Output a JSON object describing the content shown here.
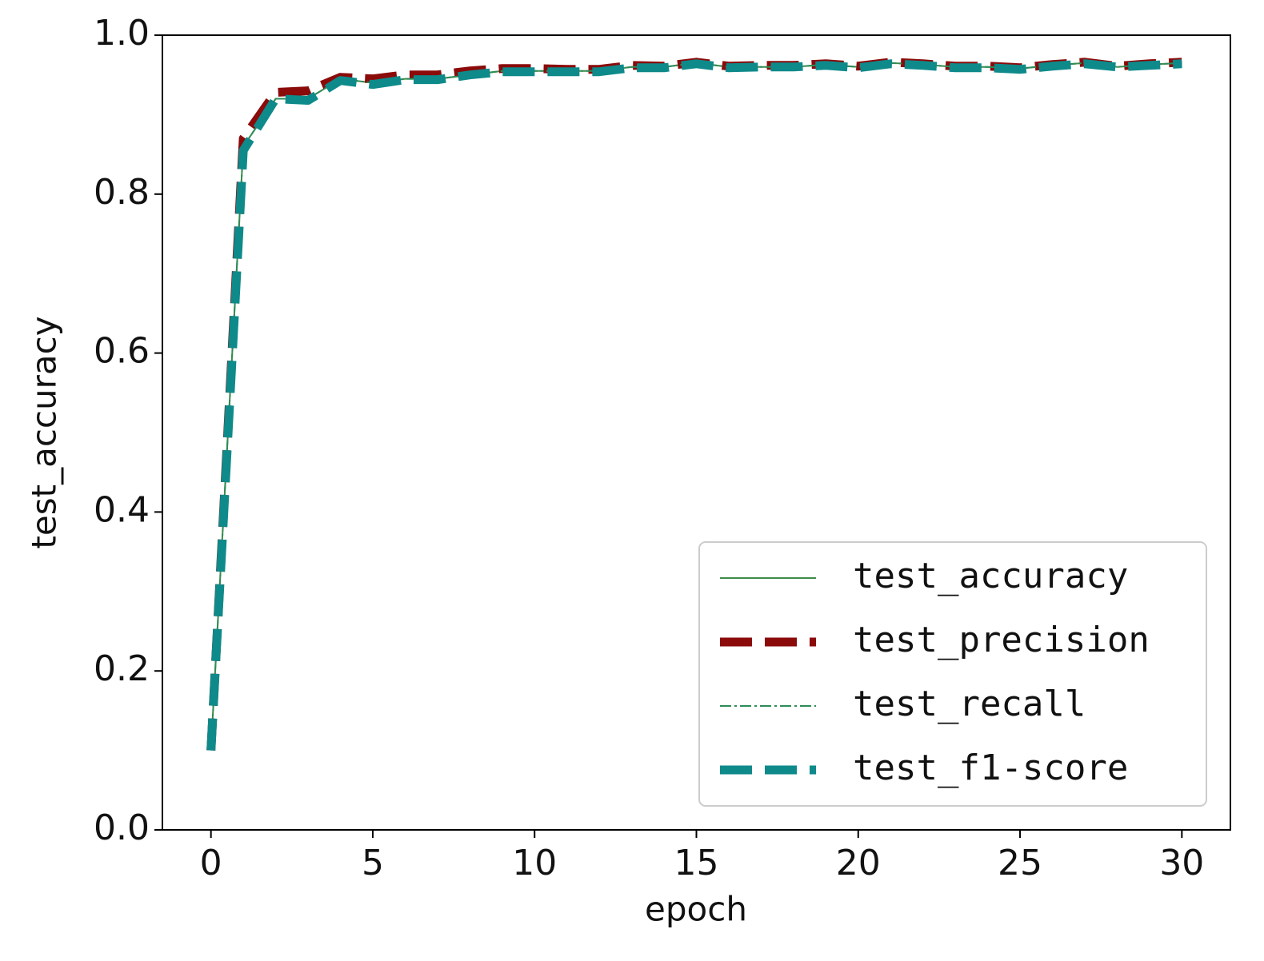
{
  "chart_data": {
    "type": "line",
    "xlabel": "epoch",
    "ylabel": "test_accuracy",
    "x": [
      0,
      1,
      2,
      3,
      4,
      5,
      6,
      7,
      8,
      9,
      10,
      11,
      12,
      13,
      14,
      15,
      16,
      17,
      18,
      19,
      20,
      21,
      22,
      23,
      24,
      25,
      26,
      27,
      28,
      29,
      30
    ],
    "xlim": [
      -1.5,
      31.5
    ],
    "xticks": [
      0,
      5,
      10,
      15,
      20,
      25,
      30
    ],
    "ylim": [
      0,
      1
    ],
    "yticks": [
      {
        "value": 0,
        "label": "0.0"
      },
      {
        "value": 0.2,
        "label": "0.2"
      },
      {
        "value": 0.4,
        "label": "0.4"
      },
      {
        "value": 0.6,
        "label": "0.6"
      },
      {
        "value": 0.8,
        "label": "0.8"
      },
      {
        "value": 1,
        "label": "1.0"
      }
    ],
    "legend": "lower right",
    "series": [
      {
        "name": "test_accuracy",
        "color": "#3c8c4c",
        "linestyle": "solid",
        "linewidth": 2,
        "values": [
          0.1,
          0.86,
          0.92,
          0.92,
          0.945,
          0.94,
          0.945,
          0.945,
          0.95,
          0.955,
          0.955,
          0.955,
          0.955,
          0.96,
          0.96,
          0.965,
          0.96,
          0.96,
          0.96,
          0.963,
          0.96,
          0.965,
          0.963,
          0.96,
          0.96,
          0.958,
          0.962,
          0.965,
          0.96,
          0.963,
          0.965
        ]
      },
      {
        "name": "test_precision",
        "color": "#8b0a0a",
        "linestyle": "dashed",
        "linewidth": 11,
        "values": [
          0.1,
          0.87,
          0.928,
          0.93,
          0.947,
          0.945,
          0.95,
          0.95,
          0.955,
          0.958,
          0.958,
          0.957,
          0.957,
          0.962,
          0.961,
          0.966,
          0.961,
          0.962,
          0.962,
          0.964,
          0.961,
          0.966,
          0.964,
          0.961,
          0.961,
          0.959,
          0.963,
          0.966,
          0.961,
          0.964,
          0.966
        ]
      },
      {
        "name": "test_recall",
        "color": "#2e8b57",
        "linestyle": "dashdot",
        "linewidth": 2,
        "values": [
          0.1,
          0.86,
          0.92,
          0.92,
          0.945,
          0.94,
          0.945,
          0.945,
          0.95,
          0.955,
          0.955,
          0.955,
          0.955,
          0.96,
          0.96,
          0.965,
          0.96,
          0.96,
          0.96,
          0.963,
          0.96,
          0.965,
          0.963,
          0.96,
          0.96,
          0.958,
          0.962,
          0.965,
          0.96,
          0.963,
          0.965
        ]
      },
      {
        "name": "test_f1-score",
        "color": "#0e8a8a",
        "linestyle": "dashed",
        "linewidth": 11,
        "values": [
          0.1,
          0.855,
          0.92,
          0.918,
          0.943,
          0.938,
          0.944,
          0.944,
          0.95,
          0.954,
          0.954,
          0.954,
          0.954,
          0.959,
          0.959,
          0.964,
          0.959,
          0.96,
          0.96,
          0.962,
          0.959,
          0.964,
          0.962,
          0.959,
          0.959,
          0.957,
          0.961,
          0.964,
          0.96,
          0.962,
          0.964
        ]
      }
    ]
  }
}
